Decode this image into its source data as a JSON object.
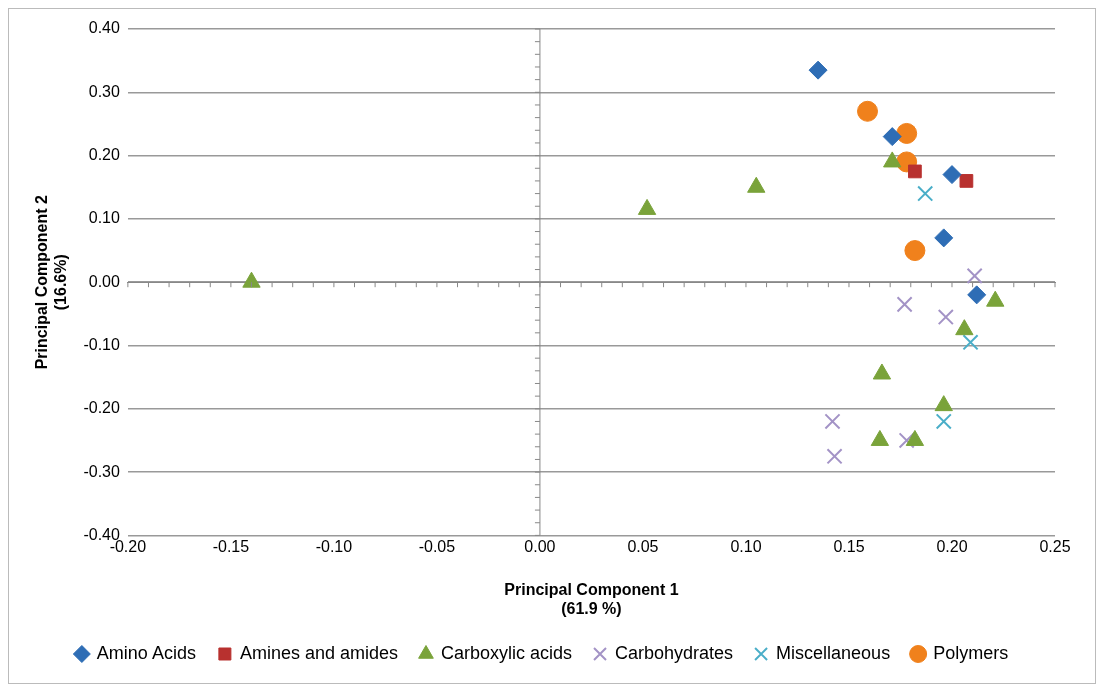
{
  "chart_data": {
    "type": "scatter",
    "xlabel": "Principal Component 1\n(61.9 %)",
    "ylabel": "Principal Component 2\n(16.6%)",
    "xlim": [
      -0.2,
      0.25
    ],
    "xticks": [
      {
        "value": -0.2,
        "label": "-0.20"
      },
      {
        "value": -0.15,
        "label": "-0.15"
      },
      {
        "value": -0.1,
        "label": "-0.10"
      },
      {
        "value": -0.05,
        "label": "-0.05"
      },
      {
        "value": 0,
        "label": "0.00"
      },
      {
        "value": 0.05,
        "label": "0.05"
      },
      {
        "value": 0.1,
        "label": "0.10"
      },
      {
        "value": 0.15,
        "label": "0.15"
      },
      {
        "value": 0.2,
        "label": "0.20"
      },
      {
        "value": 0.25,
        "label": "0.25"
      }
    ],
    "ylim": [
      -0.4,
      0.4
    ],
    "yticks": [
      {
        "value": -0.4,
        "label": "-0.40"
      },
      {
        "value": -0.3,
        "label": "-0.30"
      },
      {
        "value": -0.2,
        "label": "-0.20"
      },
      {
        "value": -0.1,
        "label": "-0.10"
      },
      {
        "value": 0,
        "label": "0.00"
      },
      {
        "value": 0.1,
        "label": "0.10"
      },
      {
        "value": 0.2,
        "label": "0.20"
      },
      {
        "value": 0.3,
        "label": "0.30"
      },
      {
        "value": 0.4,
        "label": "0.40"
      }
    ],
    "grid": "y",
    "legend": "bottom",
    "ref_lines": [
      {
        "axis": "x",
        "value": 0,
        "color": "#888888"
      }
    ],
    "series": [
      {
        "name": "Amino Acids",
        "color": "#2e6db5",
        "marker": "diamond",
        "x": [
          0.135,
          0.171,
          0.2,
          0.196,
          0.212
        ],
        "values": [
          0.335,
          0.23,
          0.17,
          0.07,
          -0.02
        ]
      },
      {
        "name": "Amines and amides",
        "color": "#b8312f",
        "marker": "square",
        "x": [
          0.182,
          0.207
        ],
        "values": [
          0.175,
          0.16
        ]
      },
      {
        "name": "Carboxylic acids",
        "color": "#7aa33a",
        "marker": "triangle",
        "x": [
          -0.14,
          0.052,
          0.105,
          0.171,
          0.221,
          0.206,
          0.166,
          0.196,
          0.165,
          0.182
        ],
        "values": [
          0,
          0.115,
          0.15,
          0.19,
          -0.03,
          -0.075,
          -0.145,
          -0.195,
          -0.25,
          -0.25
        ]
      },
      {
        "name": "Carbohydrates",
        "color": "#a393c6",
        "marker": "cross",
        "x": [
          0.211,
          0.177,
          0.197,
          0.142,
          0.143,
          0.178
        ],
        "values": [
          0.01,
          -0.035,
          -0.055,
          -0.22,
          -0.275,
          -0.25
        ]
      },
      {
        "name": "Miscellaneous",
        "color": "#4aaec8",
        "marker": "cross",
        "x": [
          0.187,
          0.209,
          0.196
        ],
        "values": [
          0.14,
          -0.095,
          -0.22
        ]
      },
      {
        "name": "Polymers",
        "color": "#f0811c",
        "marker": "circle",
        "x": [
          0.159,
          0.178,
          0.178,
          0.182
        ],
        "values": [
          0.27,
          0.235,
          0.19,
          0.05
        ]
      }
    ]
  }
}
